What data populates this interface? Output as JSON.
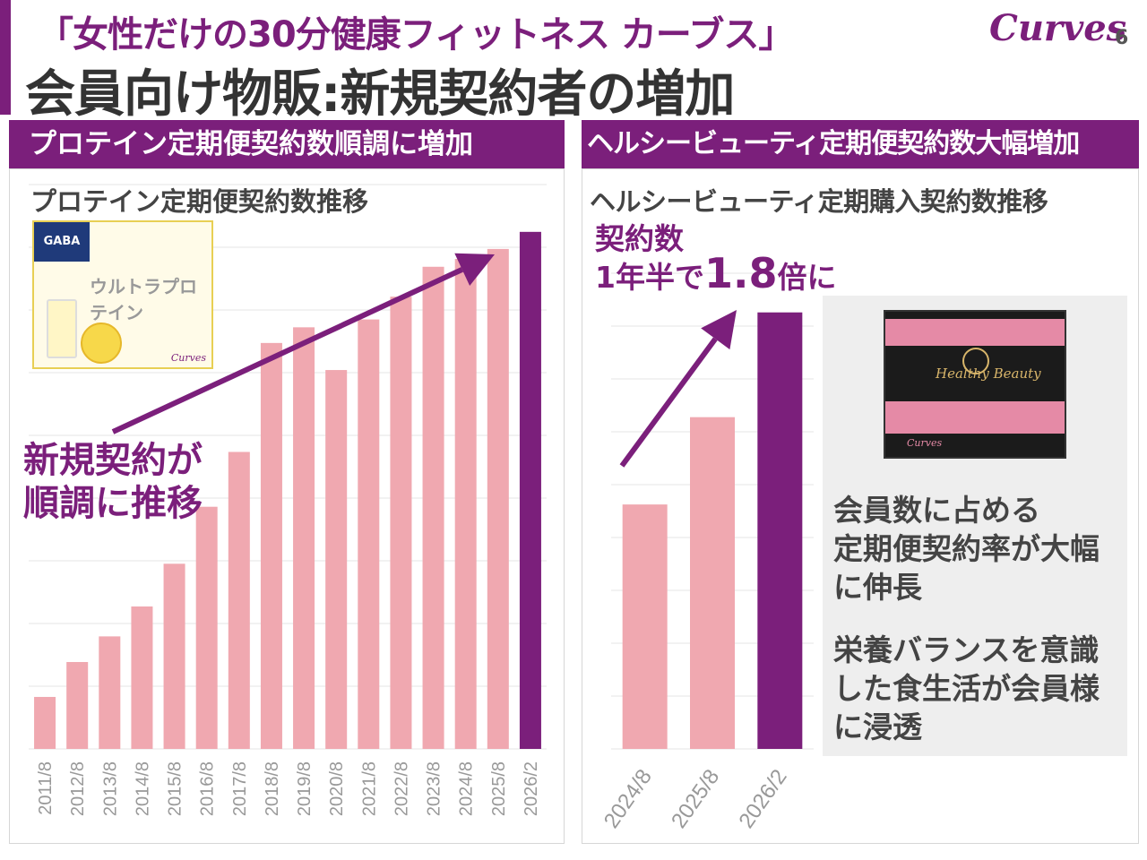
{
  "header": {
    "tagline": "「女性だけの30分健康フィットネス カーブス」",
    "logo_text": "Curves",
    "page_number": "6",
    "title": "会員向け物販:新規契約者の増加"
  },
  "left_panel": {
    "section_title": "プロテイン定期便契約数順調に増加",
    "chart_title": "プロテイン定期便契約数推移",
    "callout": [
      "新規契約が",
      "順調に推移"
    ],
    "product": {
      "badge": "GABA",
      "name": "ウルトラプロテイン",
      "logo": "Curves"
    }
  },
  "right_panel": {
    "section_title": "ヘルシービューティ定期便契約数大幅増加",
    "chart_title": "ヘルシービューティ定期購入契約数推移",
    "callout_line1": "契約数",
    "callout_line2_prefix": "1年半で",
    "callout_line2_value": "1.8",
    "callout_line2_suffix": "倍に",
    "info_1": [
      "会員数に占める",
      "定期便契約率が大幅",
      "に伸長"
    ],
    "info_2": [
      "栄養バランスを意識",
      "した食生活が会員様",
      "に浸透"
    ],
    "product": {
      "name": "Healthy Beauty",
      "logo": "Curves"
    }
  },
  "colors": {
    "brand": "#7b1f7b",
    "bar": "#f0a8b0",
    "highlight_bar": "#7b1f7b",
    "grid": "#e6e6e6"
  },
  "chart_data": [
    {
      "type": "bar",
      "title": "プロテイン定期便契約数推移",
      "categories": [
        "2011/8",
        "2012/8",
        "2013/8",
        "2014/8",
        "2015/8",
        "2016/8",
        "2017/8",
        "2018/8",
        "2019/8",
        "2020/8",
        "2021/8",
        "2022/8",
        "2023/8",
        "2024/8",
        "2025/8",
        "2026/2"
      ],
      "values": [
        7.3,
        12.2,
        15.8,
        20,
        26,
        34,
        41.7,
        57,
        59.2,
        53.2,
        60.3,
        63.5,
        67.7,
        68.8,
        70.2,
        72.6
      ],
      "highlight_index": 15,
      "ylim": [
        0,
        80
      ],
      "grid": true
    },
    {
      "type": "bar",
      "title": "ヘルシービューティ定期購入契約数推移",
      "categories": [
        "2024/8",
        "2025/8",
        "2026/2"
      ],
      "values": [
        56,
        76,
        100
      ],
      "highlight_index": 2,
      "ylim": [
        0,
        110
      ],
      "grid": true
    }
  ]
}
